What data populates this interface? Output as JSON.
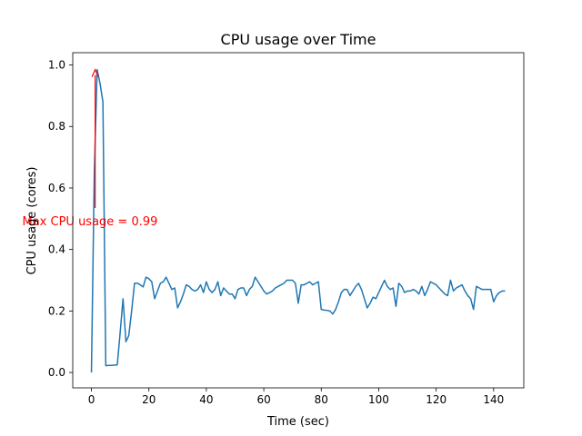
{
  "chart_data": {
    "type": "line",
    "title": "CPU usage over Time",
    "xlabel": "Time (sec)",
    "ylabel": "CPU usage (cores)",
    "xlim": [
      -6.5,
      150.5
    ],
    "ylim": [
      -0.05,
      1.04
    ],
    "xticks": [
      0,
      20,
      40,
      60,
      80,
      100,
      120,
      140
    ],
    "yticks": [
      0.0,
      0.2,
      0.4,
      0.6,
      0.8,
      1.0
    ],
    "ytick_labels": [
      "0.0",
      "0.2",
      "0.4",
      "0.6",
      "0.8",
      "1.0"
    ],
    "grid": false,
    "series_color": "#1f77b4",
    "annotation": {
      "text": "Max CPU usage = 0.99",
      "color": "#ff0000",
      "text_x": -0.5,
      "text_y": 0.49,
      "arrow_from": [
        1.3,
        0.535
      ],
      "arrow_to": [
        1.3,
        0.985
      ]
    },
    "series": [
      {
        "x": [
          0,
          1,
          2,
          3,
          4,
          5,
          6,
          7,
          8,
          9,
          10,
          11,
          12,
          13,
          14,
          15,
          16,
          17,
          18,
          19,
          20,
          21,
          22,
          23,
          24,
          25,
          26,
          27,
          28,
          29,
          30,
          31,
          32,
          33,
          34,
          35,
          36,
          37,
          38,
          39,
          40,
          41,
          42,
          43,
          44,
          45,
          46,
          47,
          48,
          49,
          50,
          51,
          52,
          53,
          54,
          55,
          56,
          57,
          58,
          59,
          60,
          61,
          62,
          63,
          64,
          65,
          66,
          67,
          68,
          69,
          70,
          71,
          72,
          73,
          74,
          75,
          76,
          77,
          78,
          79,
          80,
          81,
          82,
          83,
          84,
          85,
          86,
          87,
          88,
          89,
          90,
          91,
          92,
          93,
          94,
          95,
          96,
          97,
          98,
          99,
          100,
          101,
          102,
          103,
          104,
          105,
          106,
          107,
          108,
          109,
          110,
          111,
          112,
          113,
          114,
          115,
          116,
          117,
          118,
          119,
          120,
          121,
          122,
          123,
          124,
          125,
          126,
          127,
          128,
          129,
          130,
          131,
          132,
          133,
          134,
          135,
          136,
          137,
          138,
          139,
          140,
          141,
          142,
          143,
          144
        ],
        "y": [
          0.0,
          0.65,
          0.985,
          0.94,
          0.88,
          0.022,
          0.023,
          0.023,
          0.024,
          0.025,
          0.13,
          0.24,
          0.1,
          0.12,
          0.2,
          0.29,
          0.29,
          0.285,
          0.278,
          0.31,
          0.305,
          0.295,
          0.24,
          0.265,
          0.29,
          0.295,
          0.31,
          0.29,
          0.27,
          0.275,
          0.21,
          0.23,
          0.255,
          0.285,
          0.28,
          0.27,
          0.265,
          0.27,
          0.285,
          0.26,
          0.295,
          0.27,
          0.26,
          0.27,
          0.295,
          0.25,
          0.275,
          0.265,
          0.255,
          0.255,
          0.24,
          0.27,
          0.275,
          0.275,
          0.25,
          0.27,
          0.28,
          0.31,
          0.295,
          0.28,
          0.265,
          0.255,
          0.26,
          0.265,
          0.275,
          0.28,
          0.285,
          0.29,
          0.3,
          0.3,
          0.3,
          0.29,
          0.225,
          0.285,
          0.285,
          0.29,
          0.295,
          0.285,
          0.29,
          0.295,
          0.205,
          0.203,
          0.202,
          0.2,
          0.19,
          0.205,
          0.23,
          0.26,
          0.27,
          0.27,
          0.25,
          0.265,
          0.28,
          0.29,
          0.27,
          0.24,
          0.21,
          0.225,
          0.245,
          0.24,
          0.26,
          0.28,
          0.3,
          0.28,
          0.27,
          0.275,
          0.215,
          0.29,
          0.28,
          0.26,
          0.265,
          0.265,
          0.27,
          0.265,
          0.255,
          0.28,
          0.25,
          0.27,
          0.295,
          0.29,
          0.285,
          0.275,
          0.265,
          0.255,
          0.25,
          0.3,
          0.265,
          0.275,
          0.28,
          0.285,
          0.265,
          0.25,
          0.24,
          0.205,
          0.28,
          0.275,
          0.27,
          0.27,
          0.27,
          0.27,
          0.23,
          0.25,
          0.26,
          0.265,
          0.265
        ]
      }
    ]
  }
}
